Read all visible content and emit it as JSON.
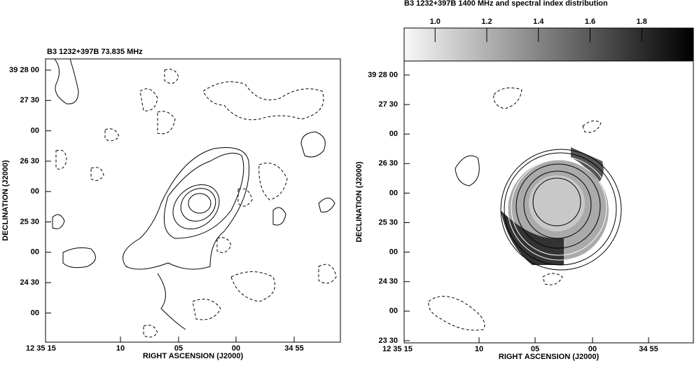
{
  "panels": [
    {
      "title": "B3 1232+397B  73.835 MHz",
      "x_label": "RIGHT ASCENSION (J2000)",
      "y_label": "DECLINATION (J2000)",
      "x_tick_labels": [
        "12 35 15",
        "10",
        "05",
        "00",
        "34 55"
      ],
      "y_tick_labels": [
        "39 28 00",
        "27 30",
        "00",
        "26 30",
        "00",
        "25 30",
        "00",
        "24 30",
        "00"
      ]
    },
    {
      "title": "B3 1232+397B  1400 MHz and spectral index distribution",
      "x_label": "RIGHT ASCENSION (J2000)",
      "y_label": "DECLINATION (J2000)",
      "x_tick_labels": [
        "12 35 15",
        "10",
        "05",
        "00",
        "34 55"
      ],
      "y_tick_labels": [
        "39 28 00",
        "27 30",
        "00",
        "26 30",
        "00",
        "25 30",
        "00",
        "24 30",
        "00",
        "23 30"
      ],
      "colorbar": {
        "lim": [
          0.88,
          2.0
        ],
        "ticks": [
          {
            "value": 1,
            "label": "1.0"
          },
          {
            "value": 1.2,
            "label": "1.2"
          },
          {
            "value": 1.4,
            "label": "1.4"
          },
          {
            "value": 1.6,
            "label": "1.6"
          },
          {
            "value": 1.8,
            "label": "1.8"
          }
        ]
      }
    }
  ]
}
